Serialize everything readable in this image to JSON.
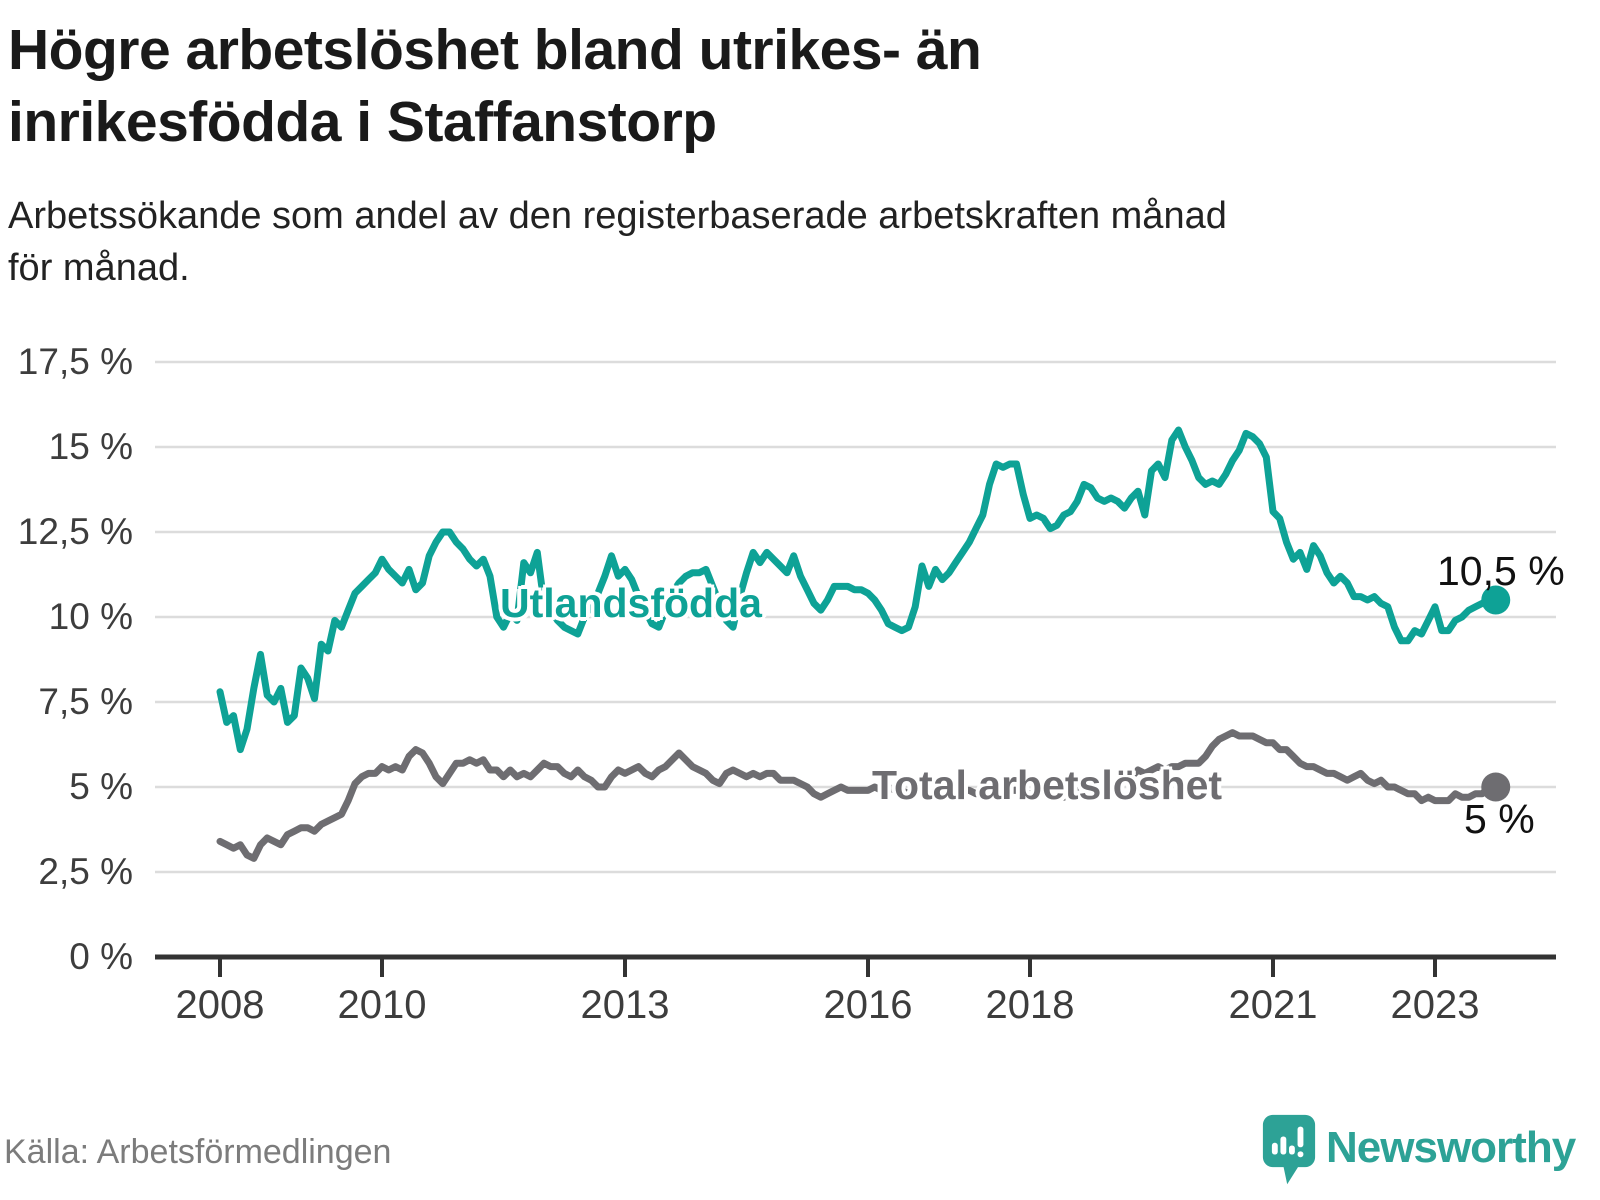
{
  "header": {
    "title_lines": [
      "Högre arbetslöshet bland utrikes- än",
      "inrikesfödda i Staffanstorp"
    ],
    "subtitle_lines": [
      "Arbetssökande som andel av den registerbaserade arbetskraften månad",
      "för månad."
    ]
  },
  "colors": {
    "teal": "#0EA296",
    "gray": "#6E6D71",
    "grid": "#DCDCDC",
    "axis": "#333333",
    "tick_text": "#3D3D3D",
    "title_text": "#1A1A1A",
    "end_label_text": "#111111",
    "source_text": "#7C7C7C",
    "logo_teal": "#2DA296"
  },
  "y_axis": {
    "unit": "%",
    "ticks": [
      {
        "label": "17,5 %",
        "value": 17.5
      },
      {
        "label": "15 %",
        "value": 15
      },
      {
        "label": "12,5 %",
        "value": 12.5
      },
      {
        "label": "10 %",
        "value": 10
      },
      {
        "label": "7,5 %",
        "value": 7.5
      },
      {
        "label": "5 %",
        "value": 5
      },
      {
        "label": "2,5 %",
        "value": 2.5
      },
      {
        "label": "0 %",
        "value": 0
      }
    ]
  },
  "x_axis": {
    "ticks": [
      {
        "label": "2008",
        "year": 2008
      },
      {
        "label": "2010",
        "year": 2010
      },
      {
        "label": "2013",
        "year": 2013
      },
      {
        "label": "2016",
        "year": 2016
      },
      {
        "label": "2018",
        "year": 2018
      },
      {
        "label": "2021",
        "year": 2021
      },
      {
        "label": "2023",
        "year": 2023
      }
    ]
  },
  "chart_data": {
    "type": "line",
    "unit": "%",
    "x_start_year": 2008,
    "x_step_months": 1,
    "x_range": [
      2008.0,
      2023.75
    ],
    "ylim": [
      0,
      17.5
    ],
    "grid": true,
    "legend_position": "inline-labels",
    "series": [
      {
        "name": "Utlandsfödda",
        "color": "#0EA296",
        "end_label": "10,5 %",
        "end_value": 10.5,
        "values": [
          7.8,
          6.9,
          7.1,
          6.1,
          6.7,
          7.9,
          8.9,
          7.7,
          7.5,
          7.9,
          6.9,
          7.1,
          8.5,
          8.2,
          7.6,
          9.2,
          9.0,
          9.9,
          9.7,
          10.2,
          10.7,
          10.9,
          11.1,
          11.3,
          11.7,
          11.4,
          11.2,
          11.0,
          11.4,
          10.8,
          11.0,
          11.8,
          12.2,
          12.5,
          12.5,
          12.2,
          12.0,
          11.7,
          11.5,
          11.7,
          11.2,
          10.0,
          9.7,
          10.1,
          9.9,
          11.6,
          11.3,
          11.9,
          10.4,
          10.2,
          9.9,
          9.7,
          9.6,
          9.5,
          10.0,
          10.4,
          10.7,
          11.2,
          11.8,
          11.2,
          11.4,
          11.1,
          10.6,
          10.2,
          9.8,
          9.7,
          10.2,
          10.7,
          11.0,
          11.2,
          11.3,
          11.3,
          11.4,
          10.9,
          10.4,
          9.9,
          9.7,
          10.6,
          11.3,
          11.9,
          11.6,
          11.9,
          11.7,
          11.5,
          11.3,
          11.8,
          11.2,
          10.8,
          10.4,
          10.2,
          10.5,
          10.9,
          10.9,
          10.9,
          10.8,
          10.8,
          10.7,
          10.5,
          10.2,
          9.8,
          9.7,
          9.6,
          9.7,
          10.3,
          11.5,
          10.9,
          11.4,
          11.1,
          11.3,
          11.6,
          11.9,
          12.2,
          12.6,
          13.0,
          13.9,
          14.5,
          14.4,
          14.5,
          14.5,
          13.6,
          12.9,
          13.0,
          12.9,
          12.6,
          12.7,
          13.0,
          13.1,
          13.4,
          13.9,
          13.8,
          13.5,
          13.4,
          13.5,
          13.4,
          13.2,
          13.5,
          13.7,
          13.0,
          14.3,
          14.5,
          14.1,
          15.2,
          15.5,
          15.0,
          14.6,
          14.1,
          13.9,
          14.0,
          13.9,
          14.2,
          14.6,
          14.9,
          15.4,
          15.3,
          15.1,
          14.7,
          13.1,
          12.9,
          12.2,
          11.7,
          11.9,
          11.4,
          12.1,
          11.8,
          11.3,
          11.0,
          11.2,
          11.0,
          10.6,
          10.6,
          10.5,
          10.6,
          10.4,
          10.3,
          9.7,
          9.3,
          9.3,
          9.6,
          9.5,
          9.9,
          10.3,
          9.6,
          9.6,
          9.9,
          10.0,
          10.2,
          10.3,
          10.4,
          10.5,
          10.5
        ]
      },
      {
        "name": "Total arbetslöshet",
        "color": "#6E6D71",
        "end_label": "5 %",
        "end_value": 5.0,
        "values": [
          3.4,
          3.3,
          3.2,
          3.3,
          3.0,
          2.9,
          3.3,
          3.5,
          3.4,
          3.3,
          3.6,
          3.7,
          3.8,
          3.8,
          3.7,
          3.9,
          4.0,
          4.1,
          4.2,
          4.6,
          5.1,
          5.3,
          5.4,
          5.4,
          5.6,
          5.5,
          5.6,
          5.5,
          5.9,
          6.1,
          6.0,
          5.7,
          5.3,
          5.1,
          5.4,
          5.7,
          5.7,
          5.8,
          5.7,
          5.8,
          5.5,
          5.5,
          5.3,
          5.5,
          5.3,
          5.4,
          5.3,
          5.5,
          5.7,
          5.6,
          5.6,
          5.4,
          5.3,
          5.5,
          5.3,
          5.2,
          5.0,
          5.0,
          5.3,
          5.5,
          5.4,
          5.5,
          5.6,
          5.4,
          5.3,
          5.5,
          5.6,
          5.8,
          6.0,
          5.8,
          5.6,
          5.5,
          5.4,
          5.2,
          5.1,
          5.4,
          5.5,
          5.4,
          5.3,
          5.4,
          5.3,
          5.4,
          5.4,
          5.2,
          5.2,
          5.2,
          5.1,
          5.0,
          4.8,
          4.7,
          4.8,
          4.9,
          5.0,
          4.9,
          4.9,
          4.9,
          4.9,
          5.0,
          4.9,
          5.0,
          4.9,
          4.9,
          4.8,
          4.9,
          4.9,
          4.9,
          4.8,
          4.8,
          4.8,
          4.9,
          4.9,
          4.9,
          4.8,
          4.8,
          4.8,
          4.9,
          5.0,
          4.9,
          4.9,
          4.8,
          4.8,
          4.8,
          4.9,
          4.8,
          4.8,
          4.7,
          4.8,
          4.9,
          4.9,
          5.0,
          5.0,
          5.1,
          5.1,
          5.2,
          5.2,
          5.3,
          5.5,
          5.4,
          5.5,
          5.6,
          5.5,
          5.6,
          5.6,
          5.7,
          5.7,
          5.7,
          5.9,
          6.2,
          6.4,
          6.5,
          6.6,
          6.5,
          6.5,
          6.5,
          6.4,
          6.3,
          6.3,
          6.1,
          6.1,
          5.9,
          5.7,
          5.6,
          5.6,
          5.5,
          5.4,
          5.4,
          5.3,
          5.2,
          5.3,
          5.4,
          5.2,
          5.1,
          5.2,
          5.0,
          5.0,
          4.9,
          4.8,
          4.8,
          4.6,
          4.7,
          4.6,
          4.6,
          4.6,
          4.8,
          4.7,
          4.7,
          4.8,
          4.8,
          5.0,
          5.0
        ]
      }
    ]
  },
  "footer": {
    "source": "Källa: Arbetsförmedlingen",
    "brand": "Newsworthy"
  }
}
